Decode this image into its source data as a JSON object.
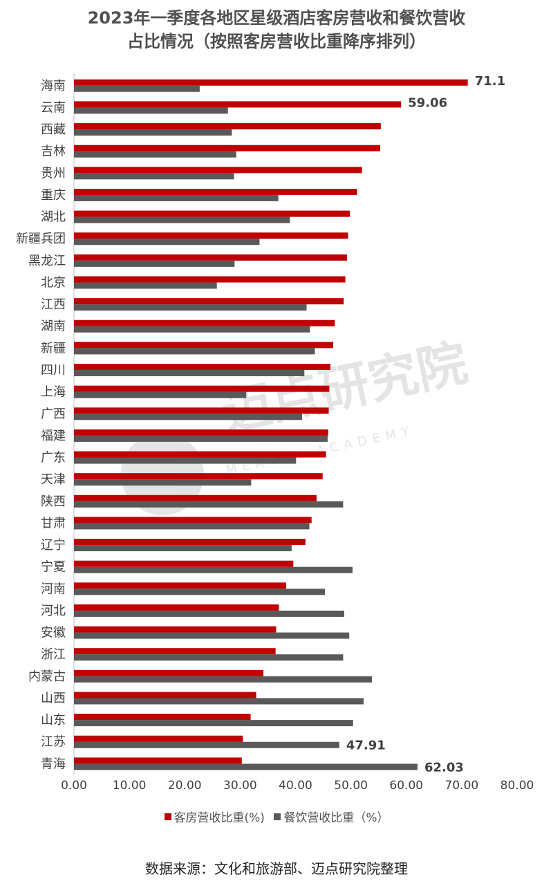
{
  "header": {
    "title_line1": "2023年一季度各地区星级酒店客房营收和餐饮营收",
    "title_line2": "占比情况（按照客房营收比重降序排列）"
  },
  "watermark": {
    "cn": "迈点研究院",
    "en": "MEADIN ACADEMY"
  },
  "source": "数据来源：文化和旅游部、迈点研究院整理",
  "chart_data": {
    "type": "bar",
    "orientation": "horizontal",
    "title": "2023年一季度各地区星级酒店客房营收和餐饮营收占比情况（按照客房营收比重降序排列）",
    "categories": [
      "海南",
      "云南",
      "西藏",
      "吉林",
      "贵州",
      "重庆",
      "湖北",
      "新疆兵团",
      "黑龙江",
      "北京",
      "江西",
      "湖南",
      "新疆",
      "四川",
      "上海",
      "广西",
      "福建",
      "广东",
      "天津",
      "陕西",
      "甘肃",
      "辽宁",
      "宁夏",
      "河南",
      "河北",
      "安徽",
      "浙江",
      "内蒙古",
      "山西",
      "山东",
      "江苏",
      "青海"
    ],
    "series": [
      {
        "name": "客房营收比重(%)",
        "color": "#C00000",
        "values": [
          71.1,
          59.06,
          55.4,
          55.3,
          52.0,
          51.1,
          49.8,
          49.5,
          49.3,
          49.0,
          48.7,
          47.1,
          46.8,
          46.3,
          46.1,
          46.0,
          45.9,
          45.5,
          44.9,
          43.8,
          42.9,
          41.8,
          39.6,
          38.3,
          37.0,
          36.5,
          36.4,
          34.2,
          32.9,
          31.9,
          30.5,
          30.3
        ],
        "data_labels": {
          "0": "71.1",
          "1": "59.06"
        }
      },
      {
        "name": "餐饮营收比重（%）",
        "color": "#595959",
        "values": [
          22.7,
          27.8,
          28.5,
          29.3,
          28.9,
          36.9,
          39.0,
          33.5,
          29.0,
          25.8,
          42.0,
          42.6,
          43.5,
          41.6,
          31.1,
          41.2,
          45.8,
          40.1,
          32.0,
          48.6,
          42.5,
          39.3,
          50.3,
          45.3,
          48.8,
          49.7,
          48.6,
          53.8,
          52.3,
          50.4,
          47.91,
          62.03
        ],
        "data_labels": {
          "30": "47.91",
          "31": "62.03"
        }
      }
    ],
    "xlim": [
      0,
      80
    ],
    "xticks": [
      "0.00",
      "10.00",
      "20.00",
      "30.00",
      "40.00",
      "50.00",
      "60.00",
      "70.00",
      "80.00"
    ],
    "grid": false,
    "legend_position": "bottom"
  }
}
